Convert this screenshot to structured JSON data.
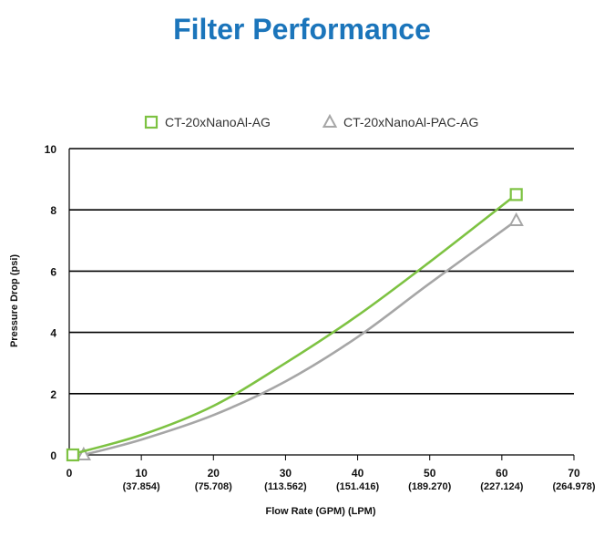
{
  "chart_data": {
    "type": "line",
    "title": "Filter Performance",
    "xlabel": "Flow Rate (GPM) (LPM)",
    "ylabel": "Pressure Drop (psi)",
    "xlim": [
      0,
      70
    ],
    "ylim": [
      0,
      10
    ],
    "x_ticks": [
      {
        "value": 0,
        "label": "0",
        "sublabel": ""
      },
      {
        "value": 10,
        "label": "10",
        "sublabel": "(37.854)"
      },
      {
        "value": 20,
        "label": "20",
        "sublabel": "(75.708)"
      },
      {
        "value": 30,
        "label": "30",
        "sublabel": "(113.562)"
      },
      {
        "value": 40,
        "label": "40",
        "sublabel": "(151.416)"
      },
      {
        "value": 50,
        "label": "50",
        "sublabel": "(189.270)"
      },
      {
        "value": 60,
        "label": "60",
        "sublabel": "(227.124)"
      },
      {
        "value": 70,
        "label": "70",
        "sublabel": "(264.978)"
      }
    ],
    "y_ticks": [
      "0",
      "2",
      "4",
      "6",
      "8",
      "10"
    ],
    "gridlines": [
      2,
      4,
      6,
      8,
      10
    ],
    "legend_position": "top",
    "series": [
      {
        "name": "CT-20xNanoAl-AG",
        "color": "#7dc242",
        "marker": "square",
        "x": [
          0,
          10,
          20,
          30,
          40,
          50,
          62
        ],
        "values": [
          0,
          0.65,
          1.6,
          3.0,
          4.55,
          6.3,
          8.5
        ],
        "marker_points": [
          [
            0.5,
            0
          ],
          [
            62,
            8.5
          ]
        ]
      },
      {
        "name": "CT-20xNanoAl-PAC-AG",
        "color": "#a6a6a6",
        "marker": "triangle",
        "x": [
          2,
          10,
          20,
          30,
          40,
          50,
          62
        ],
        "values": [
          0,
          0.5,
          1.3,
          2.4,
          3.85,
          5.6,
          7.65
        ],
        "marker_points": [
          [
            2,
            0
          ],
          [
            62,
            7.65
          ]
        ]
      }
    ]
  }
}
